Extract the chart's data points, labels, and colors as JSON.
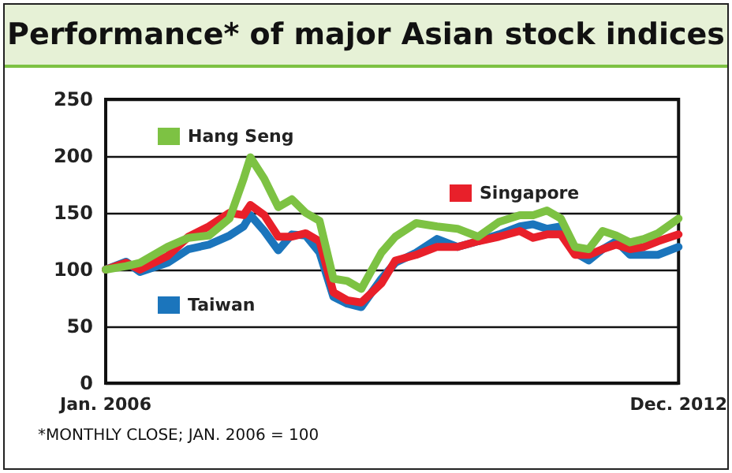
{
  "chart_data": {
    "type": "line",
    "title": "Performance* of major Asian stock indices",
    "annotations": [
      "*MONTHLY CLOSE; JAN. 2006 = 100"
    ],
    "x": [
      "2006-01",
      "2006-04",
      "2006-06",
      "2006-10",
      "2007-01",
      "2007-04",
      "2007-07",
      "2007-09",
      "2007-10",
      "2007-12",
      "2008-02",
      "2008-04",
      "2008-06",
      "2008-08",
      "2008-10",
      "2008-12",
      "2009-02",
      "2009-05",
      "2009-07",
      "2009-10",
      "2010-01",
      "2010-04",
      "2010-07",
      "2010-10",
      "2011-01",
      "2011-03",
      "2011-05",
      "2011-07",
      "2011-09",
      "2011-11",
      "2012-01",
      "2012-03",
      "2012-05",
      "2012-07",
      "2012-09",
      "2012-12"
    ],
    "series": [
      {
        "name": "Taiwan",
        "color": "#1b75bc",
        "values": [
          100,
          107,
          98,
          106,
          118,
          122,
          130,
          138,
          148,
          134,
          117,
          131,
          130,
          115,
          76,
          70,
          67,
          92,
          106,
          115,
          127,
          120,
          125,
          131,
          138,
          140,
          136,
          138,
          115,
          108,
          118,
          125,
          113,
          113,
          113,
          120
        ]
      },
      {
        "name": "Singapore",
        "color": "#e8202a",
        "values": [
          100,
          106,
          100,
          112,
          129,
          138,
          150,
          148,
          157,
          148,
          129,
          129,
          132,
          125,
          80,
          73,
          71,
          88,
          108,
          113,
          120,
          120,
          125,
          129,
          134,
          128,
          131,
          131,
          113,
          113,
          118,
          122,
          118,
          120,
          125,
          131
        ]
      },
      {
        "name": "Hang Seng",
        "color": "#7dc243",
        "values": [
          100,
          103,
          106,
          120,
          128,
          130,
          145,
          180,
          199,
          180,
          155,
          162,
          150,
          143,
          92,
          90,
          83,
          115,
          129,
          141,
          138,
          136,
          129,
          142,
          148,
          148,
          152,
          145,
          120,
          118,
          134,
          130,
          124,
          127,
          132,
          145
        ]
      }
    ],
    "xlim": [
      "2006-01",
      "2012-12"
    ],
    "xticks": [
      {
        "value": "2006-01",
        "label": "Jan. 2006"
      },
      {
        "value": "2012-12",
        "label": "Dec. 2012"
      }
    ],
    "ylim": [
      0,
      250
    ],
    "yticks": [
      0,
      50,
      100,
      150,
      200,
      250
    ],
    "grid": "y",
    "legend": "top left",
    "marker": "none",
    "line_style": "solid"
  }
}
